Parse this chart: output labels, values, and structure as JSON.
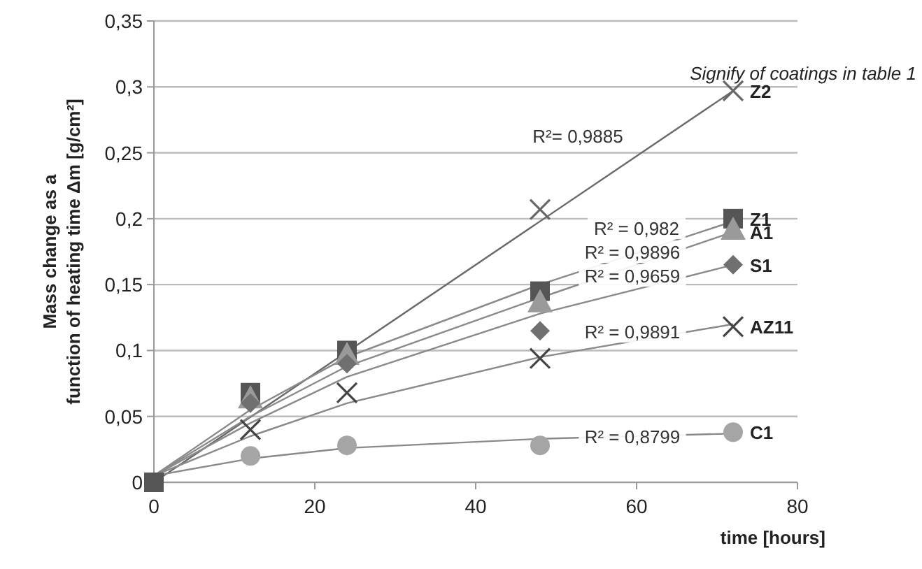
{
  "chart_data": {
    "type": "scatter",
    "xlabel": "time [hours]",
    "ylabel": "Mass change as a function of heating time Δm [g/cm²]",
    "xlim": [
      0,
      80
    ],
    "xticks": [
      0,
      20,
      40,
      60,
      80
    ],
    "ylim": [
      0,
      0.35
    ],
    "yticks": [
      0,
      {
        "value": 0.05,
        "label": "0,05"
      },
      {
        "value": 0.1,
        "label": "0,1"
      },
      {
        "value": 0.15,
        "label": "0,15"
      },
      {
        "value": 0.2,
        "label": "0,2"
      },
      {
        "value": 0.25,
        "label": "0,25"
      },
      {
        "value": 0.3,
        "label": "0,3"
      },
      {
        "value": 0.35,
        "label": "0,35"
      }
    ],
    "grid": "y",
    "legend": false,
    "x": [
      0,
      12,
      24,
      48,
      72
    ],
    "series": [
      {
        "type": "line",
        "color": "#6a6a6a",
        "marker": "none",
        "x": [
          0,
          72
        ],
        "values": [
          0,
          0.297
        ]
      },
      {
        "type": "line",
        "color": "#8a8a8a",
        "marker": "none",
        "x": [
          0,
          12,
          24,
          48,
          72
        ],
        "values": [
          0.005,
          0.055,
          0.095,
          0.15,
          0.198
        ]
      },
      {
        "type": "line",
        "color": "#8a8a8a",
        "marker": "none",
        "x": [
          0,
          12,
          24,
          48,
          72
        ],
        "values": [
          0.005,
          0.05,
          0.088,
          0.14,
          0.19
        ]
      },
      {
        "type": "line",
        "color": "#8a8a8a",
        "marker": "none",
        "x": [
          0,
          12,
          24,
          48,
          72
        ],
        "values": [
          0.005,
          0.045,
          0.08,
          0.128,
          0.165
        ]
      },
      {
        "type": "line",
        "color": "#8a8a8a",
        "marker": "none",
        "x": [
          0,
          12,
          24,
          48,
          72
        ],
        "values": [
          0.005,
          0.035,
          0.06,
          0.095,
          0.12
        ]
      },
      {
        "type": "line",
        "color": "#8a8a8a",
        "marker": "none",
        "x": [
          0,
          12,
          24,
          48,
          72
        ],
        "values": [
          0.005,
          0.018,
          0.026,
          0.033,
          0.037
        ]
      },
      {
        "name": "Z2",
        "color": "#666666",
        "marker": "cross",
        "values": [
          null,
          null,
          null,
          0.207,
          0.297
        ]
      },
      {
        "name": "Z1",
        "color": "#555555",
        "marker": "square",
        "values": [
          0,
          0.068,
          0.1,
          0.145,
          0.2
        ]
      },
      {
        "name": "A1",
        "color": "#9a9a9a",
        "marker": "triangle",
        "values": [
          null,
          0.062,
          0.095,
          0.135,
          0.19
        ]
      },
      {
        "name": "S1",
        "color": "#707070",
        "marker": "diamond",
        "values": [
          null,
          0.06,
          0.09,
          0.115,
          0.165
        ]
      },
      {
        "name": "AZ11",
        "color": "#444444",
        "marker": "cross",
        "values": [
          null,
          0.04,
          0.068,
          0.094,
          0.118
        ]
      },
      {
        "name": "C1",
        "color": "#a5a5a5",
        "marker": "circle",
        "values": [
          null,
          0.02,
          0.028,
          0.028,
          0.038
        ]
      }
    ],
    "annotations": [
      "Signify of coatings in table 1",
      "R²= 0,9885",
      "R² = 0,982",
      "R² = 0,9896",
      "R² = 0,9659",
      "R² = 0,9891",
      "R² = 0,8799"
    ]
  }
}
